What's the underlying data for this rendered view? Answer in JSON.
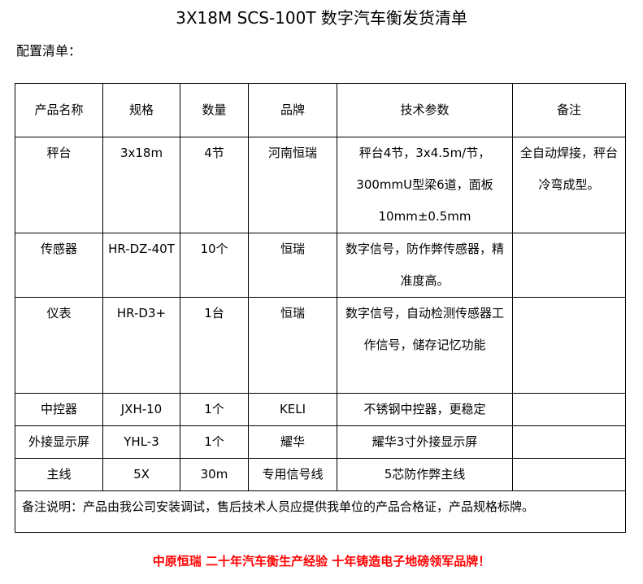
{
  "title": "3X18M SCS-100T 数字汽车衡发货清单",
  "subtitle": "配置清单：",
  "table": {
    "headers": [
      "产品名称",
      "规格",
      "数量",
      "品牌",
      "技术参数",
      "备注"
    ],
    "rows": [
      [
        "秤台",
        "3x18m",
        "4节",
        "河南恒瑞",
        "秤台4节，3x4.5m/节，300mmU型梁6道，面板10mm±0.5mm",
        "全自动焊接，秤台冷弯成型。"
      ],
      [
        "传感器",
        "HR-DZ-40T",
        "10个",
        "恒瑞",
        "数字信号，防作弊传感器，精准度高。",
        ""
      ],
      [
        "仪表",
        "HR-D3+",
        "1台",
        "恒瑞",
        "数字信号，自动检测传感器工作信号，储存记忆功能",
        ""
      ],
      [
        "中控器",
        "JXH-10",
        "1个",
        "KELI",
        "不锈钢中控器，更稳定",
        ""
      ],
      [
        "外接显示屏",
        "YHL-3",
        "1个",
        "耀华",
        "耀华3寸外接显示屏",
        ""
      ],
      [
        "主线",
        "5X",
        "30m",
        "专用信号线",
        "5芯防作弊主线",
        ""
      ]
    ],
    "note": "备注说明：产品由我公司安装调试，售后技术人员应提供我单位的产品合格证，产品规格标牌。"
  },
  "footer": "中原恒瑞 二十年汽车衡生产经验 十年铸造电子地磅领军品牌！",
  "colors": {
    "footer": "#ff0000"
  }
}
